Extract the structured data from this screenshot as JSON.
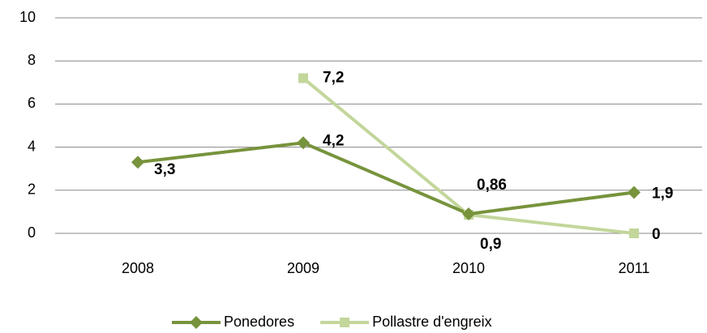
{
  "chart_data": {
    "type": "line",
    "categories": [
      "2008",
      "2009",
      "2010",
      "2011"
    ],
    "series": [
      {
        "name": "Ponedores",
        "color": "#77933c",
        "marker": "diamond",
        "values": [
          3.3,
          4.2,
          0.9,
          1.9
        ],
        "value_labels": [
          "3,3",
          "4,2",
          "0,9",
          "1,9"
        ]
      },
      {
        "name": "Pollastre d'engreix",
        "color": "#c3d69b",
        "marker": "square",
        "values": [
          null,
          7.2,
          0.86,
          0
        ],
        "value_labels": [
          null,
          "7,2",
          "0,86",
          "0"
        ]
      }
    ],
    "ylim": [
      0,
      10
    ],
    "yticks": [
      0,
      2,
      4,
      6,
      8,
      10
    ],
    "grid": true,
    "legend": "bottom"
  }
}
